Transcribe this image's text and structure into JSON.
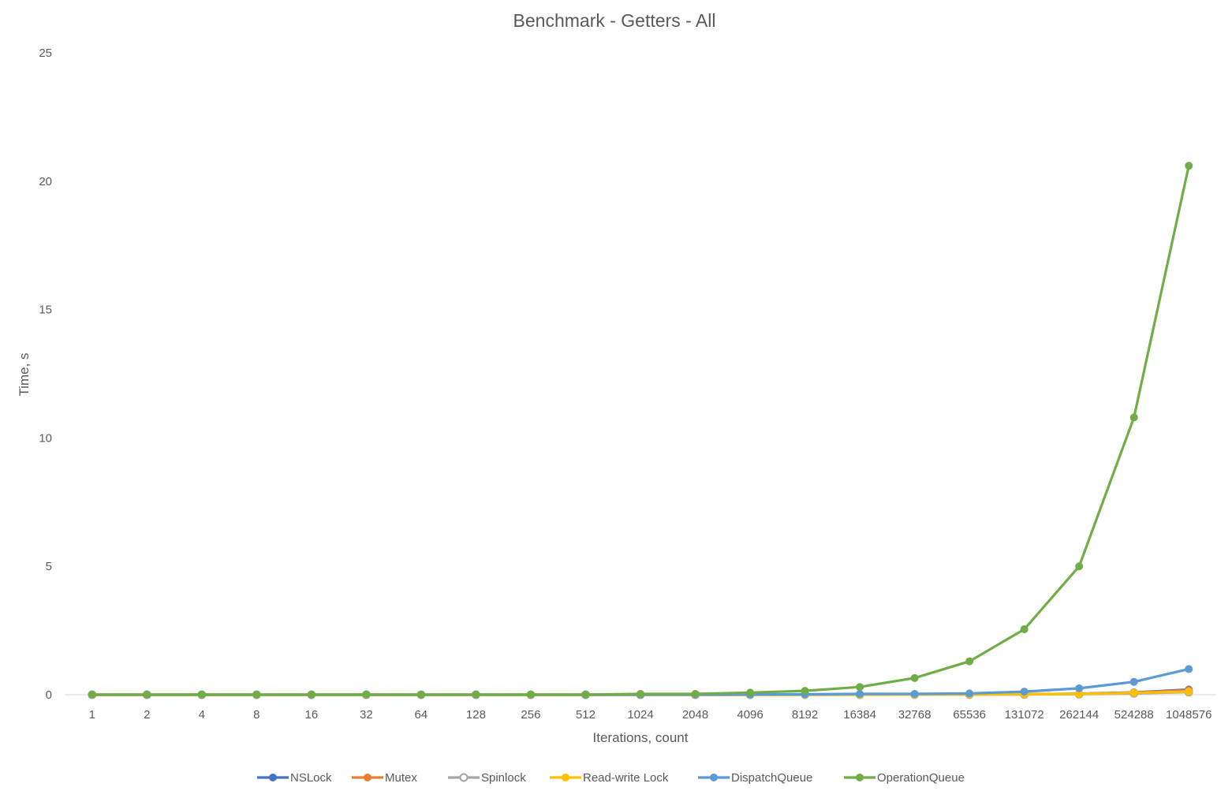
{
  "chart_data": {
    "type": "line",
    "title": "Benchmark - Getters - All",
    "xlabel": "Iterations, count",
    "ylabel": "Time, s",
    "categories": [
      "1",
      "2",
      "4",
      "8",
      "16",
      "32",
      "64",
      "128",
      "256",
      "512",
      "1024",
      "2048",
      "4096",
      "8192",
      "16384",
      "32768",
      "65536",
      "131072",
      "262144",
      "524288",
      "1048576"
    ],
    "ylim": [
      0,
      25
    ],
    "yticks": [
      "0",
      "5",
      "10",
      "15",
      "20",
      "25"
    ],
    "grid": false,
    "legend_position": "bottom",
    "series": [
      {
        "name": "NSLock",
        "color": "#4472C4",
        "marker": "circle",
        "values": [
          0,
          0,
          0,
          0,
          0,
          0,
          0,
          0,
          0,
          0,
          0,
          0,
          0,
          0,
          0.002,
          0.004,
          0.008,
          0.016,
          0.04,
          0.09,
          0.2
        ]
      },
      {
        "name": "Mutex",
        "color": "#ED7D31",
        "marker": "circle",
        "values": [
          0,
          0,
          0,
          0,
          0,
          0,
          0,
          0,
          0,
          0,
          0,
          0,
          0,
          0,
          0.002,
          0.004,
          0.008,
          0.016,
          0.035,
          0.08,
          0.17
        ]
      },
      {
        "name": "Spinlock",
        "color": "#A5A5A5",
        "marker": "circle-open",
        "values": [
          0,
          0,
          0,
          0,
          0,
          0,
          0,
          0,
          0,
          0,
          0,
          0,
          0,
          0,
          0.001,
          0.002,
          0.004,
          0.01,
          0.02,
          0.05,
          0.1
        ]
      },
      {
        "name": "Read-write Lock",
        "color": "#FFC000",
        "marker": "circle",
        "values": [
          0,
          0,
          0,
          0,
          0,
          0,
          0,
          0,
          0,
          0,
          0,
          0,
          0,
          0,
          0.002,
          0.004,
          0.008,
          0.016,
          0.03,
          0.07,
          0.12
        ]
      },
      {
        "name": "DispatchQueue",
        "color": "#5B9BD5",
        "marker": "circle",
        "values": [
          0,
          0,
          0,
          0,
          0,
          0,
          0,
          0,
          0,
          0,
          0.002,
          0.004,
          0.008,
          0.015,
          0.03,
          0.03,
          0.05,
          0.12,
          0.25,
          0.5,
          1.0
        ]
      },
      {
        "name": "OperationQueue",
        "color": "#70AD47",
        "marker": "circle",
        "values": [
          0,
          0,
          0,
          0,
          0,
          0,
          0,
          0,
          0,
          0,
          0.03,
          0.03,
          0.08,
          0.15,
          0.3,
          0.65,
          1.3,
          2.55,
          5.0,
          10.8,
          20.6
        ]
      }
    ]
  }
}
